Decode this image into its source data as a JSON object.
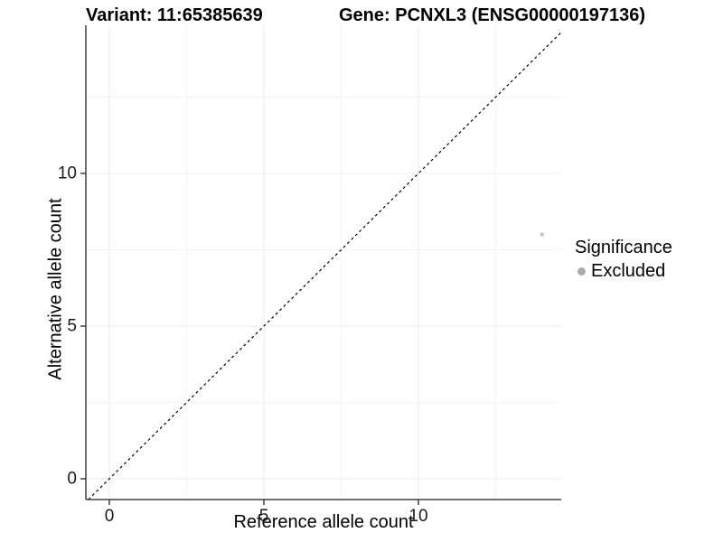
{
  "chart_data": {
    "type": "scatter",
    "titles": {
      "left": "Variant: 11:65385639",
      "right": "Gene: PCNXL3 (ENSG00000197136)"
    },
    "xlabel": "Reference allele count",
    "ylabel": "Alternative allele count",
    "x_ticks": [
      0,
      5,
      10
    ],
    "y_ticks": [
      0,
      5,
      10
    ],
    "x_minor_ticks": [
      2.5,
      7.5,
      12.5
    ],
    "y_minor_ticks": [
      2.5,
      7.5,
      12.5
    ],
    "xlim": [
      -0.76,
      14.62
    ],
    "ylim": [
      -0.68,
      14.85
    ],
    "grid": true,
    "points": [
      {
        "x": 14,
        "y": 8,
        "significance": "Excluded"
      }
    ],
    "identity_line": {
      "slope": 1,
      "intercept": 0,
      "style": "dashed"
    },
    "legend": {
      "title": "Significance",
      "position": "right",
      "items": [
        {
          "label": "Excluded",
          "color": "#ababab"
        }
      ]
    },
    "colors": {
      "point": "#c7c7c7",
      "legend_key": "#ababab",
      "grid_major": "#ebebeb",
      "grid_minor": "#f5f5f5",
      "axis": "#404040",
      "dashed_line": "#000000",
      "text": "#000000"
    }
  }
}
